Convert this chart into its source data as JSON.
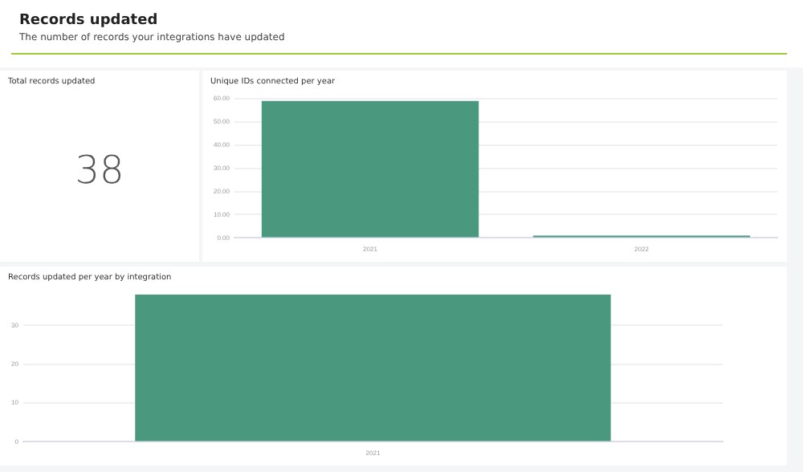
{
  "chart_data": [
    {
      "type": "other",
      "title": "Records updated",
      "subtitle": "The number of records your integrations have updated"
    },
    {
      "type": "other",
      "title": "Total records updated",
      "annotations": [
        "38"
      ]
    },
    {
      "type": "bar",
      "title": "Unique IDs connected per year",
      "categories": [
        "2021",
        "2022"
      ],
      "values": [
        59,
        1
      ],
      "color": "#4a987d",
      "ylim": [
        0,
        60
      ],
      "yticks": [
        {
          "value": 0,
          "label": "0.00"
        },
        {
          "value": 10,
          "label": "10.00"
        },
        {
          "value": 20,
          "label": "20.00"
        },
        {
          "value": 30,
          "label": "30.00"
        },
        {
          "value": 40,
          "label": "40.00"
        },
        {
          "value": 50,
          "label": "50.00"
        },
        {
          "value": 60,
          "label": "60.00"
        }
      ],
      "grid": "y"
    },
    {
      "type": "bar",
      "title": "Records updated per year by integration",
      "categories": [
        "2021"
      ],
      "values": [
        38
      ],
      "color": "#4a987d",
      "ylim": [
        0,
        38
      ],
      "yticks": [
        0,
        10,
        20,
        30
      ],
      "grid": "y"
    }
  ]
}
